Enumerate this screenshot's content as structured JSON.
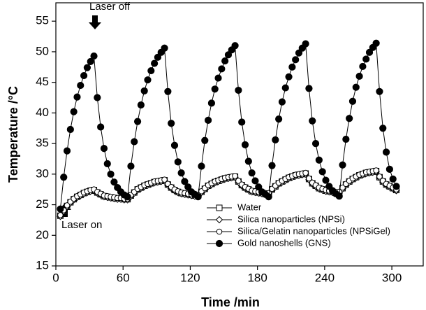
{
  "chart_data": {
    "type": "line",
    "xlabel": "Time /min",
    "ylabel": "Temperature /°C",
    "xlim": [
      0,
      328
    ],
    "ylim": [
      15,
      58
    ],
    "xticks": [
      0,
      60,
      120,
      180,
      240,
      300
    ],
    "yticks": [
      15,
      20,
      25,
      30,
      35,
      40,
      45,
      50,
      55
    ],
    "grid": false,
    "legend": "lower right",
    "annotations": [
      "Laser off",
      "Laser on"
    ],
    "x": [
      4,
      7,
      10,
      13,
      16,
      19,
      22,
      25,
      28,
      31,
      34,
      37,
      40,
      43,
      46,
      49,
      52,
      55,
      58,
      61,
      64,
      67,
      70,
      73,
      76,
      79,
      82,
      85,
      88,
      91,
      94,
      97,
      100,
      103,
      106,
      109,
      112,
      115,
      118,
      121,
      124,
      127,
      130,
      133,
      136,
      139,
      142,
      145,
      148,
      151,
      154,
      157,
      160,
      163,
      166,
      169,
      172,
      175,
      178,
      181,
      184,
      187,
      190,
      193,
      196,
      199,
      202,
      205,
      208,
      211,
      214,
      217,
      220,
      223,
      226,
      229,
      232,
      235,
      238,
      241,
      244,
      247,
      250,
      253,
      256,
      259,
      262,
      265,
      268,
      271,
      274,
      277,
      280,
      283,
      286,
      289,
      292,
      295,
      298,
      301,
      304
    ],
    "series": [
      {
        "name": "Water",
        "color": "#000000",
        "marker": "square",
        "values": [
          23.2,
          24.0,
          24.8,
          25.4,
          25.9,
          26.3,
          26.6,
          26.9,
          27.1,
          27.3,
          27.4,
          27.0,
          26.7,
          26.4,
          26.3,
          26.2,
          26.1,
          26.0,
          26.0,
          25.9,
          25.9,
          26.5,
          27.0,
          27.5,
          27.8,
          28.1,
          28.3,
          28.5,
          28.7,
          28.8,
          28.9,
          29.0,
          28.3,
          27.8,
          27.4,
          27.1,
          26.9,
          26.8,
          26.7,
          26.6,
          26.5,
          26.5,
          27.1,
          27.6,
          28.1,
          28.4,
          28.7,
          28.9,
          29.1,
          29.3,
          29.4,
          29.5,
          29.6,
          28.8,
          28.2,
          27.8,
          27.5,
          27.2,
          27.1,
          27.0,
          26.9,
          26.8,
          26.8,
          27.5,
          28.0,
          28.5,
          28.8,
          29.1,
          29.4,
          29.6,
          29.8,
          29.9,
          30.0,
          30.1,
          29.2,
          28.5,
          28.1,
          27.7,
          27.5,
          27.3,
          27.2,
          27.1,
          27.0,
          27.0,
          27.7,
          28.3,
          28.8,
          29.2,
          29.5,
          29.8,
          30.0,
          30.2,
          30.3,
          30.4,
          30.5,
          29.5,
          28.8,
          28.3,
          28.0,
          27.7,
          27.4
        ]
      },
      {
        "name": "Silica nanoparticles (NPSi)",
        "color": "#000000",
        "marker": "diamond",
        "values": [
          23.1,
          23.9,
          24.7,
          25.3,
          25.8,
          26.2,
          26.5,
          26.8,
          27.0,
          27.2,
          27.3,
          26.9,
          26.6,
          26.3,
          26.2,
          26.1,
          26.0,
          25.9,
          25.9,
          25.8,
          25.8,
          26.4,
          26.9,
          27.4,
          27.7,
          28.0,
          28.2,
          28.4,
          28.6,
          28.7,
          28.8,
          28.9,
          28.2,
          27.7,
          27.3,
          27.0,
          26.8,
          26.7,
          26.6,
          26.5,
          26.4,
          26.4,
          27.0,
          27.5,
          28.0,
          28.3,
          28.6,
          28.8,
          29.0,
          29.2,
          29.3,
          29.4,
          29.5,
          28.7,
          28.1,
          27.7,
          27.4,
          27.1,
          27.0,
          26.9,
          26.8,
          26.7,
          26.7,
          27.4,
          27.9,
          28.4,
          28.7,
          29.0,
          29.3,
          29.5,
          29.7,
          29.8,
          29.9,
          30.0,
          29.1,
          28.4,
          28.0,
          27.6,
          27.4,
          27.2,
          27.1,
          27.0,
          26.9,
          26.9,
          27.6,
          28.2,
          28.7,
          29.1,
          29.4,
          29.7,
          29.9,
          30.1,
          30.2,
          30.3,
          30.4,
          29.4,
          28.7,
          28.2,
          27.9,
          27.6,
          27.3
        ]
      },
      {
        "name": "Silica/Gelatin nanoparticles (NPSiGel)",
        "color": "#000000",
        "marker": "circle",
        "values": [
          23.3,
          24.1,
          24.9,
          25.5,
          26.0,
          26.4,
          26.7,
          27.0,
          27.2,
          27.4,
          27.5,
          27.1,
          26.8,
          26.5,
          26.4,
          26.3,
          26.2,
          26.1,
          26.1,
          26.0,
          26.0,
          26.6,
          27.1,
          27.6,
          27.9,
          28.2,
          28.4,
          28.6,
          28.8,
          28.9,
          29.0,
          29.1,
          28.4,
          27.9,
          27.5,
          27.2,
          27.0,
          26.9,
          26.8,
          26.7,
          26.6,
          26.6,
          27.2,
          27.7,
          28.2,
          28.5,
          28.8,
          29.0,
          29.2,
          29.4,
          29.5,
          29.6,
          29.7,
          28.9,
          28.3,
          27.9,
          27.6,
          27.3,
          27.2,
          27.1,
          27.0,
          26.9,
          26.9,
          27.6,
          28.1,
          28.6,
          28.9,
          29.2,
          29.5,
          29.7,
          29.9,
          30.0,
          30.1,
          30.2,
          29.3,
          28.6,
          28.2,
          27.8,
          27.6,
          27.4,
          27.3,
          27.2,
          27.1,
          27.1,
          27.8,
          28.4,
          28.9,
          29.3,
          29.6,
          29.9,
          30.1,
          30.3,
          30.4,
          30.5,
          30.6,
          29.6,
          28.9,
          28.4,
          28.1,
          27.8,
          27.5
        ]
      },
      {
        "name": "Gold nanoshells (GNS)",
        "color": "#000000",
        "marker": "filled-circle",
        "values": [
          24.3,
          29.5,
          33.8,
          37.3,
          40.2,
          42.6,
          44.5,
          46.1,
          47.4,
          48.4,
          49.3,
          42.5,
          37.7,
          34.2,
          31.7,
          30.0,
          28.7,
          27.8,
          27.1,
          26.6,
          26.3,
          31.3,
          35.3,
          38.6,
          41.3,
          43.6,
          45.4,
          46.9,
          48.1,
          49.1,
          49.9,
          50.6,
          43.5,
          38.3,
          34.7,
          32.0,
          30.2,
          28.8,
          27.9,
          27.1,
          26.7,
          26.3,
          31.3,
          35.5,
          38.8,
          41.6,
          43.9,
          45.7,
          47.2,
          48.5,
          49.5,
          50.3,
          51.0,
          43.7,
          38.5,
          34.8,
          32.1,
          30.2,
          28.9,
          27.9,
          27.1,
          26.7,
          26.3,
          31.4,
          35.6,
          39.0,
          41.8,
          44.1,
          45.9,
          47.5,
          48.7,
          49.8,
          50.6,
          51.3,
          44.0,
          38.7,
          35.0,
          32.3,
          30.4,
          29.0,
          28.0,
          27.3,
          26.8,
          26.4,
          31.5,
          35.7,
          39.1,
          41.9,
          44.2,
          46.0,
          47.6,
          48.8,
          49.9,
          50.7,
          51.4,
          43.5,
          37.5,
          33.6,
          30.8,
          29.2,
          28.0
        ]
      }
    ]
  }
}
